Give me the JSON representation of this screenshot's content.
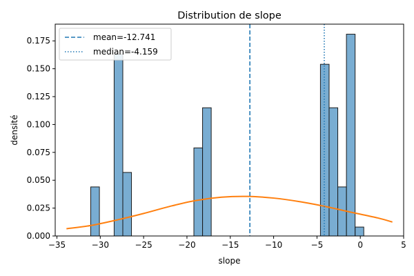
{
  "chart_data": {
    "type": "bar",
    "title": "Distribution de slope",
    "xlabel": "slope",
    "ylabel": "densité",
    "xlim": [
      -35.2,
      5.0
    ],
    "ylim": [
      0,
      0.19
    ],
    "xticks": [
      -35,
      -30,
      -25,
      -20,
      -15,
      -10,
      -5,
      0,
      5
    ],
    "yticks": [
      0.0,
      0.025,
      0.05,
      0.075,
      0.1,
      0.125,
      0.15,
      0.175
    ],
    "ytick_labels": [
      "0.000",
      "0.025",
      "0.050",
      "0.075",
      "0.100",
      "0.125",
      "0.150",
      "0.175"
    ],
    "bins": [
      {
        "x0": -31.1,
        "x1": -30.1,
        "value": 0.044
      },
      {
        "x0": -28.4,
        "x1": -27.4,
        "value": 0.163
      },
      {
        "x0": -27.4,
        "x1": -26.4,
        "value": 0.057
      },
      {
        "x0": -19.2,
        "x1": -18.2,
        "value": 0.079
      },
      {
        "x0": -18.2,
        "x1": -17.2,
        "value": 0.115
      },
      {
        "x0": -4.6,
        "x1": -3.6,
        "value": 0.154
      },
      {
        "x0": -3.6,
        "x1": -2.6,
        "value": 0.115
      },
      {
        "x0": -2.6,
        "x1": -1.6,
        "value": 0.044
      },
      {
        "x0": -1.6,
        "x1": -0.6,
        "value": 0.181
      },
      {
        "x0": -0.6,
        "x1": 0.4,
        "value": 0.008
      }
    ],
    "kde": {
      "x": [
        -33.9,
        -31,
        -28,
        -25,
        -22,
        -19,
        -16,
        -13,
        -10,
        -7,
        -4,
        -1,
        2,
        3.7
      ],
      "y": [
        0.0065,
        0.0095,
        0.0145,
        0.0202,
        0.0265,
        0.0318,
        0.0348,
        0.0355,
        0.034,
        0.0308,
        0.0264,
        0.0212,
        0.0162,
        0.0125
      ],
      "color": "#ff7f0e"
    },
    "mean": {
      "value": -12.741,
      "label": "mean=-12.741",
      "style": "dashed",
      "color": "#1f77b4"
    },
    "median": {
      "value": -4.159,
      "label": "median=-4.159",
      "style": "dotted",
      "color": "#1f77b4"
    },
    "bar_color": "#1f77b4",
    "bar_opacity": 0.6,
    "grid": false,
    "legend_position": "top-left"
  }
}
